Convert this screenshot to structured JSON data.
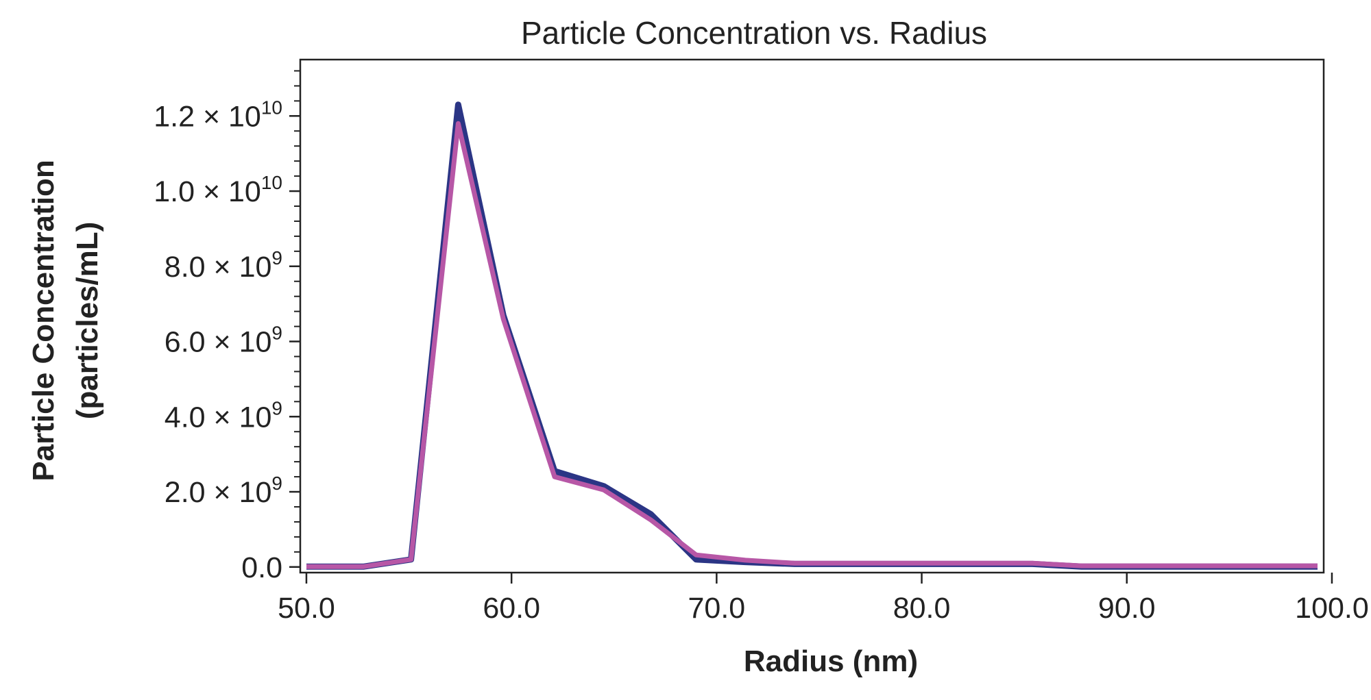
{
  "chart_data": {
    "type": "line",
    "title": "Particle Concentration vs. Radius",
    "xlabel": "Radius (nm)",
    "ylabel_lines": [
      "Particle Concentration",
      "(particles/mL)"
    ],
    "xlim": [
      49.7,
      99.6
    ],
    "ylim": [
      -150000000.0,
      13500000000.0
    ],
    "x_ticks": [
      {
        "value": 50,
        "label": "50.0"
      },
      {
        "value": 60,
        "label": "60.0"
      },
      {
        "value": 70,
        "label": "70.0"
      },
      {
        "value": 80,
        "label": "80.0"
      },
      {
        "value": 90,
        "label": "90.0"
      },
      {
        "value": 100,
        "label": "100.0"
      }
    ],
    "y_ticks": [
      {
        "value": 0,
        "label": "0.0",
        "exp": ""
      },
      {
        "value": 2000000000.0,
        "label": "2.0 × 10",
        "exp": "9"
      },
      {
        "value": 4000000000.0,
        "label": "4.0 × 10",
        "exp": "9"
      },
      {
        "value": 6000000000.0,
        "label": "6.0 × 10",
        "exp": "9"
      },
      {
        "value": 8000000000.0,
        "label": "8.0 × 10",
        "exp": "9"
      },
      {
        "value": 10000000000.0,
        "label": "1.0 × 10",
        "exp": "10"
      },
      {
        "value": 12000000000.0,
        "label": "1.2 × 10",
        "exp": "10"
      }
    ],
    "y_minor_step": 400000000.0,
    "grid": false,
    "legend": "none",
    "series": [
      {
        "color": "#2b3585",
        "x": [
          50.0,
          52.8,
          55.1,
          57.4,
          59.6,
          62.1,
          64.5,
          66.8,
          69.0,
          71.4,
          73.8,
          76.2,
          78.4,
          80.8,
          83.1,
          85.4,
          87.8,
          90.1,
          92.4,
          94.8,
          97.1,
          99.3
        ],
        "y": [
          10000000.0,
          10000000.0,
          200000000.0,
          12300000000.0,
          6700000000.0,
          2550000000.0,
          2150000000.0,
          1400000000.0,
          200000000.0,
          130000000.0,
          80000000.0,
          80000000.0,
          80000000.0,
          80000000.0,
          80000000.0,
          80000000.0,
          10000000.0,
          10000000.0,
          10000000.0,
          10000000.0,
          10000000.0,
          10000000.0
        ]
      },
      {
        "color": "#b757a6",
        "x": [
          50.0,
          52.8,
          55.1,
          57.4,
          59.6,
          62.1,
          64.5,
          66.8,
          69.0,
          71.4,
          73.8,
          76.2,
          78.4,
          80.8,
          83.1,
          85.4,
          87.8,
          90.1,
          92.4,
          94.8,
          97.1,
          99.3
        ],
        "y": [
          10000000.0,
          10000000.0,
          200000000.0,
          11800000000.0,
          6600000000.0,
          2400000000.0,
          2050000000.0,
          1250000000.0,
          320000000.0,
          180000000.0,
          100000000.0,
          100000000.0,
          100000000.0,
          100000000.0,
          100000000.0,
          100000000.0,
          30000000.0,
          30000000.0,
          30000000.0,
          30000000.0,
          30000000.0,
          30000000.0
        ]
      }
    ]
  }
}
